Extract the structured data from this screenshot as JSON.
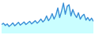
{
  "chart_data": {
    "type": "line",
    "values": [
      28,
      32,
      25,
      30,
      22,
      27,
      33,
      24,
      29,
      35,
      26,
      31,
      36,
      28,
      33,
      38,
      30,
      35,
      40,
      32,
      38,
      45,
      36,
      42,
      55,
      40,
      48,
      62,
      45,
      58,
      80,
      50,
      70,
      95,
      60,
      85,
      90,
      55,
      75,
      60,
      50,
      65,
      45,
      55,
      60,
      42,
      50,
      40,
      48,
      38
    ],
    "color": "#3a8fd6",
    "ylim": [
      0,
      100
    ],
    "tick_labels": false,
    "grid": false
  }
}
